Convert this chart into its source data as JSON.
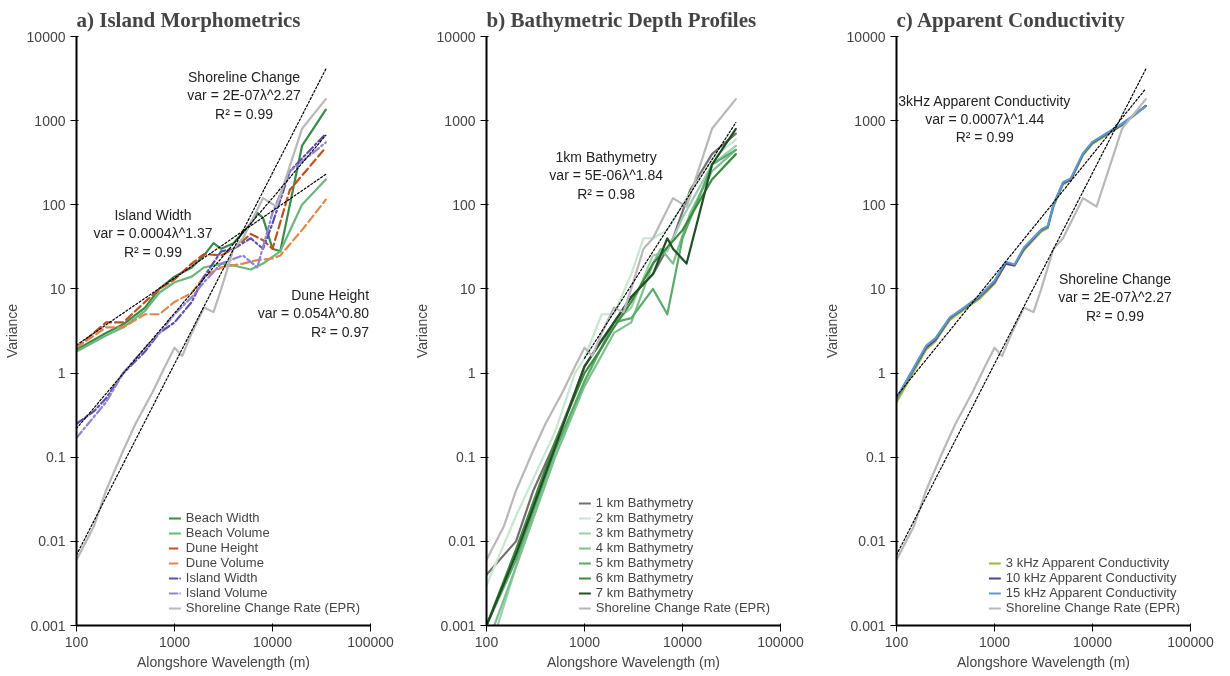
{
  "chart_data": [
    {
      "type": "line",
      "title": "a) Island Morphometrics",
      "xlabel": "Alongshore Wavelength (m)",
      "ylabel": "Variance",
      "log": "xy",
      "grid": false,
      "legend": "bottom right",
      "xlim": [
        100,
        100000
      ],
      "ylim": [
        0.001,
        10000
      ],
      "xticks": [
        100,
        1000,
        10000,
        100000
      ],
      "yticks": [
        0.001,
        0.01,
        0.1,
        1,
        10,
        100,
        1000,
        10000
      ],
      "series": [
        {
          "name": "Beach Width",
          "color": "#3a8a4a",
          "line_style": "solid",
          "x": [
            100,
            200,
            300,
            500,
            700,
            1000,
            1500,
            2000,
            2500,
            3000,
            4000,
            6000,
            7000,
            8000,
            10000,
            12000,
            20000,
            35000
          ],
          "values": [
            1.9,
            3,
            3.8,
            6,
            10,
            14,
            18,
            25,
            35,
            30,
            35,
            60,
            80,
            70,
            30,
            28,
            500,
            1350
          ]
        },
        {
          "name": "Beach Volume",
          "color": "#6ab77a",
          "line_style": "solid",
          "x": [
            100,
            200,
            300,
            500,
            700,
            1000,
            1500,
            2000,
            3000,
            4000,
            6000,
            8000,
            12000,
            20000,
            35000
          ],
          "values": [
            1.8,
            2.8,
            3.5,
            5.5,
            9,
            12,
            14,
            18,
            20,
            19,
            17,
            20,
            28,
            100,
            200
          ]
        },
        {
          "name": "Dune Height",
          "color": "#c0501e",
          "line_style": "dashed",
          "x": [
            100,
            200,
            300,
            500,
            700,
            1000,
            1500,
            2000,
            3000,
            4000,
            6000,
            8000,
            10000,
            15000,
            35000
          ],
          "values": [
            2,
            4,
            4,
            7,
            10,
            13,
            20,
            26,
            25,
            30,
            45,
            38,
            30,
            150,
            480
          ]
        },
        {
          "name": "Dune Volume",
          "color": "#e0874a",
          "line_style": "dashed",
          "x": [
            100,
            200,
            300,
            500,
            700,
            1000,
            1500,
            2000,
            3000,
            5000,
            7000,
            10000,
            12000,
            20000,
            35000
          ],
          "values": [
            2,
            3.5,
            3.5,
            5,
            5,
            7,
            9,
            14,
            18,
            20,
            22,
            23,
            25,
            50,
            115
          ]
        },
        {
          "name": "Island Width",
          "color": "#5b4fb0",
          "line_style": "dashdot",
          "x": [
            100,
            150,
            200,
            300,
            500,
            700,
            1000,
            1500,
            2000,
            3000,
            4000,
            6000,
            8000,
            10000,
            15000,
            35000
          ],
          "values": [
            0.25,
            0.35,
            0.5,
            1,
            1.8,
            3,
            4,
            7,
            14,
            28,
            30,
            40,
            30,
            60,
            250,
            700
          ]
        },
        {
          "name": "Island Volume",
          "color": "#8f86d2",
          "line_style": "dashdot",
          "x": [
            100,
            150,
            200,
            300,
            500,
            700,
            1000,
            1500,
            2000,
            3000,
            5000,
            7000,
            10000,
            15000,
            35000
          ],
          "values": [
            0.17,
            0.3,
            0.45,
            1,
            2,
            3,
            5,
            8,
            12,
            20,
            25,
            18,
            80,
            250,
            550
          ]
        },
        {
          "name": "Shoreline Change Rate (EPR)",
          "color": "#b8b8b8",
          "line_style": "solid",
          "x": [
            100,
            150,
            200,
            300,
            400,
            600,
            800,
            1000,
            1200,
            1500,
            2000,
            2500,
            3000,
            4000,
            5000,
            8000,
            11000,
            20000,
            35000
          ],
          "values": [
            0.006,
            0.015,
            0.04,
            0.12,
            0.25,
            0.6,
            1.2,
            2,
            1.6,
            3,
            6,
            5.3,
            10,
            30,
            40,
            120,
            95,
            800,
            1800
          ]
        },
        {
          "color": "#000000",
          "line_style": "dotted",
          "x": [
            100,
            35000
          ],
          "values": [
            0.0069,
            4100
          ]
        },
        {
          "color": "#000000",
          "line_style": "dotted",
          "x": [
            100,
            35000
          ],
          "values": [
            0.22,
            670
          ]
        },
        {
          "color": "#000000",
          "line_style": "dotted",
          "x": [
            100,
            35000
          ],
          "values": [
            2.15,
            230
          ]
        }
      ],
      "annotations": [
        "Shoreline Change\nvar = 2E-07λ^2.27\nR² = 0.99",
        "Dune Height\nvar = 0.054λ^0.80\nR² = 0.97",
        "Island Width\nvar = 0.0004λ^1.37\nR² = 0.99"
      ]
    },
    {
      "type": "line",
      "title": "b) Bathymetric Depth Profiles",
      "xlabel": "Alongshore Wavelength (m)",
      "ylabel": "Variance",
      "log": "xy",
      "grid": false,
      "legend": "bottom right",
      "xlim": [
        100,
        100000
      ],
      "ylim": [
        0.001,
        10000
      ],
      "xticks": [
        100,
        1000,
        10000,
        100000
      ],
      "yticks": [
        0.001,
        0.01,
        0.1,
        1,
        10,
        100,
        1000,
        10000
      ],
      "series": [
        {
          "name": "1 km Bathymetry",
          "color": "#707070",
          "line_style": "solid",
          "x": [
            100,
            200,
            300,
            500,
            700,
            1000,
            1500,
            2000,
            3000,
            5000,
            8000,
            12000,
            20000,
            35000
          ],
          "values": [
            0.004,
            0.01,
            0.04,
            0.15,
            0.4,
            1.2,
            2.5,
            4,
            8,
            15,
            40,
            150,
            400,
            700
          ]
        },
        {
          "name": "2 km Bathymetry",
          "color": "#c8e6d0",
          "line_style": "solid",
          "x": [
            100,
            200,
            500,
            800,
            1000,
            1500,
            2000,
            3000,
            4000,
            5000,
            7000,
            10000,
            20000,
            35000
          ],
          "values": [
            0.003,
            0.02,
            0.2,
            1,
            1.5,
            5,
            5,
            15,
            40,
            40,
            50,
            100,
            350,
            600
          ]
        },
        {
          "name": "3 km Bathymetry",
          "color": "#9ccfae",
          "line_style": "solid",
          "x": [
            130,
            200,
            500,
            1000,
            2000,
            3000,
            5000,
            7000,
            10000,
            20000,
            35000
          ],
          "values": [
            0.001,
            0.005,
            0.1,
            0.8,
            4,
            6,
            25,
            28,
            70,
            300,
            500
          ]
        },
        {
          "name": "4 km Bathymetry",
          "color": "#7cc08e",
          "line_style": "solid",
          "x": [
            120,
            200,
            500,
            1000,
            2000,
            3000,
            5000,
            6000,
            8000,
            12000,
            20000,
            35000
          ],
          "values": [
            0.001,
            0.005,
            0.1,
            0.7,
            3,
            4,
            20,
            30,
            20,
            80,
            250,
            450
          ]
        },
        {
          "name": "5 km Bathymetry",
          "color": "#5aaa6a",
          "line_style": "solid",
          "x": [
            100,
            200,
            500,
            1000,
            2000,
            3000,
            5000,
            7000,
            10000,
            20000,
            35000
          ],
          "values": [
            0.001,
            0.006,
            0.12,
            0.8,
            4,
            4.5,
            10,
            5,
            40,
            300,
            450
          ]
        },
        {
          "name": "6 km Bathymetry",
          "color": "#3e8a3e",
          "line_style": "solid",
          "x": [
            100,
            200,
            500,
            1000,
            1500,
            2000,
            3000,
            5000,
            10000,
            20000,
            35000
          ],
          "values": [
            0.001,
            0.008,
            0.15,
            1,
            2,
            3.5,
            7,
            20,
            50,
            200,
            400
          ]
        },
        {
          "name": "7 km Bathymetry",
          "color": "#1f4f25",
          "line_style": "solid",
          "x": [
            100,
            200,
            500,
            1000,
            2000,
            3000,
            5000,
            7000,
            8000,
            11000,
            20000,
            35000
          ],
          "values": [
            0.001,
            0.007,
            0.13,
            1.2,
            4,
            8,
            15,
            40,
            30,
            20,
            300,
            800
          ]
        },
        {
          "name": "Shoreline Change Rate (EPR)",
          "color": "#b8b8b8",
          "line_style": "solid",
          "x": [
            100,
            150,
            200,
            300,
            400,
            600,
            800,
            1000,
            1200,
            1500,
            2000,
            2500,
            3000,
            4000,
            5000,
            8000,
            11000,
            20000,
            35000
          ],
          "values": [
            0.006,
            0.015,
            0.04,
            0.12,
            0.25,
            0.6,
            1.2,
            2,
            1.6,
            3,
            6,
            5.3,
            10,
            30,
            40,
            120,
            95,
            800,
            1800
          ]
        },
        {
          "color": "#000000",
          "line_style": "dotted",
          "x": [
            1000,
            35000
          ],
          "values": [
            1.5,
            950
          ]
        }
      ],
      "annotations": [
        "1km Bathymetry\nvar = 5E-06λ^1.84\nR² = 0.98"
      ]
    },
    {
      "type": "line",
      "title": "c) Apparent Conductivity",
      "xlabel": "Alongshore Wavelength (m)",
      "ylabel": "Variance",
      "log": "xy",
      "grid": false,
      "legend": "bottom right",
      "xlim": [
        100,
        100000
      ],
      "ylim": [
        0.001,
        10000
      ],
      "xticks": [
        100,
        1000,
        10000,
        100000
      ],
      "yticks": [
        0.001,
        0.01,
        0.1,
        1,
        10,
        100,
        1000,
        10000
      ],
      "series": [
        {
          "name": "3 kHz Apparent Conductivity",
          "color": "#9aba3c",
          "line_style": "solid",
          "x": [
            100,
            200,
            250,
            350,
            500,
            700,
            1000,
            1300,
            1600,
            2000,
            3000,
            3500,
            4000,
            5000,
            6000,
            8000,
            10000,
            20000,
            35000
          ],
          "values": [
            0.45,
            1.9,
            2.4,
            4.3,
            5.8,
            7.6,
            11.5,
            20,
            19,
            29,
            48,
            53,
            95,
            175,
            195,
            390,
            530,
            880,
            1500
          ]
        },
        {
          "name": "10 kHz Apparent Conductivity",
          "color": "#5a3f8f",
          "line_style": "solid",
          "x": [
            100,
            200,
            250,
            350,
            500,
            700,
            1000,
            1300,
            1600,
            2000,
            3000,
            3500,
            4000,
            5000,
            6000,
            8000,
            10000,
            20000,
            35000
          ],
          "values": [
            0.5,
            2,
            2.5,
            4.5,
            6,
            8,
            12,
            20,
            19,
            30,
            50,
            55,
            100,
            180,
            200,
            400,
            550,
            900,
            1500
          ]
        },
        {
          "name": "15 kHz Apparent Conductivity",
          "color": "#5b9bc8",
          "line_style": "solid",
          "x": [
            100,
            200,
            250,
            350,
            500,
            700,
            1000,
            1300,
            1600,
            2000,
            3000,
            3500,
            4000,
            5000,
            6000,
            8000,
            10000,
            20000,
            35000
          ],
          "values": [
            0.5,
            2.1,
            2.6,
            4.6,
            6.1,
            8.2,
            12.5,
            21,
            19.5,
            31,
            51,
            56,
            100,
            185,
            205,
            410,
            560,
            920,
            1480
          ]
        },
        {
          "name": "Shoreline Change Rate (EPR)",
          "color": "#b8b8b8",
          "line_style": "solid",
          "x": [
            100,
            150,
            200,
            300,
            400,
            600,
            800,
            1000,
            1200,
            1500,
            2000,
            2500,
            3000,
            4000,
            5000,
            8000,
            11000,
            20000,
            35000
          ],
          "values": [
            0.006,
            0.015,
            0.04,
            0.12,
            0.25,
            0.6,
            1.2,
            2,
            1.6,
            3,
            6,
            5.3,
            10,
            30,
            40,
            120,
            95,
            800,
            1800
          ]
        },
        {
          "color": "#000000",
          "line_style": "dotted",
          "x": [
            100,
            35000
          ],
          "values": [
            0.53,
            2400
          ]
        },
        {
          "color": "#000000",
          "line_style": "dotted",
          "x": [
            100,
            35000
          ],
          "values": [
            0.0069,
            4100
          ]
        }
      ],
      "annotations": [
        "3kHz Apparent Conductivity\nvar = 0.0007λ^1.44\nR² = 0.99",
        "Shoreline Change\nvar = 2E-07λ^2.27\nR² = 0.99"
      ]
    }
  ]
}
